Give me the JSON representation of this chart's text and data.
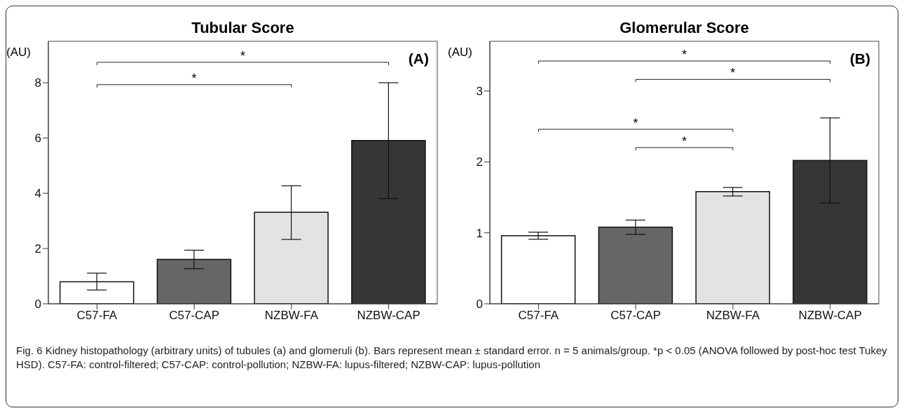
{
  "chart_data": [
    {
      "type": "bar",
      "title": "Tubular Score",
      "ylabel": "(AU)",
      "categories": [
        "C57-FA",
        "C57-CAP",
        "NZBW-FA",
        "NZBW-CAP"
      ],
      "values": [
        0.8,
        1.61,
        3.31,
        5.91
      ],
      "colors": [
        "#ffffff",
        "#666666",
        "#e3e3e3",
        "#363636"
      ],
      "errors": [
        [
          0.5,
          1.11
        ],
        [
          1.27,
          1.94
        ],
        [
          2.33,
          4.27
        ],
        [
          3.81,
          8.0
        ]
      ],
      "ylim": [
        0,
        9.5
      ],
      "yticks": [
        0,
        2,
        4,
        6,
        8
      ],
      "grid": false,
      "legend": false,
      "annotations": [
        "(A)",
        "*",
        "*",
        "Fig. 6 Kidney histopathology (arbitrary units) of tubules (a) and glomeruli (b). Bars represent mean ± standard error. n = 5 animals/group. *p < 0.05 (ANOVA followed by post-hoc test Tukey HSD). C57-FA: control-filtered; C57-CAP: control-pollution; NZBW-FA: lupus-filtered; NZBW-CAP: lupus-pollution"
      ]
    },
    {
      "type": "bar",
      "title": "Glomerular Score",
      "ylabel": "(AU)",
      "categories": [
        "C57-FA",
        "C57-CAP",
        "NZBW-FA",
        "NZBW-CAP"
      ],
      "values": [
        0.96,
        1.08,
        1.58,
        2.02
      ],
      "colors": [
        "#ffffff",
        "#666666",
        "#e3e3e3",
        "#363636"
      ],
      "errors": [
        [
          0.91,
          1.01
        ],
        [
          0.98,
          1.18
        ],
        [
          1.52,
          1.64
        ],
        [
          1.42,
          2.62
        ]
      ],
      "ylim": [
        0,
        3.7
      ],
      "yticks": [
        0,
        1,
        2,
        3
      ],
      "grid": false,
      "legend": false,
      "annotations": [
        "(B)",
        "*",
        "*",
        "*",
        "*"
      ]
    }
  ]
}
